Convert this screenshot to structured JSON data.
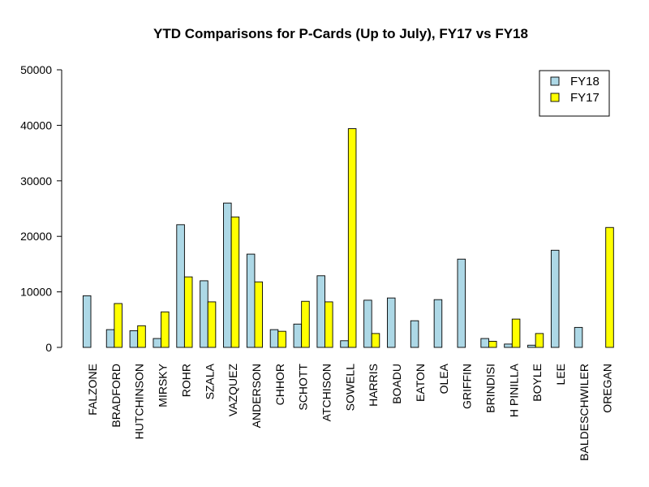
{
  "chart_data": {
    "type": "bar",
    "title": "YTD Comparisons for P-Cards (Up to July), FY17 vs FY18",
    "xlabel": "",
    "ylabel": "",
    "ylim": [
      0,
      50000
    ],
    "yticks": [
      0,
      10000,
      20000,
      30000,
      40000,
      50000
    ],
    "grid": false,
    "legend_position": "top-right",
    "categories": [
      "FALZONE",
      "BRADFORD",
      "HUTCHINSON",
      "MIRSKY",
      "ROHR",
      "SZALA",
      "VAZQUEZ",
      "ANDERSON",
      "CHHOR",
      "SCHOTT",
      "ATCHISON",
      "SOWELL",
      "HARRIS",
      "BOADU",
      "EATON",
      "OLEA",
      "GRIFFIN",
      "BRINDISI",
      "H PINILLA",
      "BOYLE",
      "LEE",
      "BALDESCHWILER",
      "OREGAN"
    ],
    "series": [
      {
        "name": "FY18",
        "color": "#add8e6",
        "values": [
          9300,
          3200,
          3000,
          1600,
          22100,
          12000,
          26000,
          16800,
          3200,
          4200,
          12900,
          1200,
          8500,
          8900,
          4800,
          8600,
          15900,
          1600,
          600,
          400,
          17500,
          3600,
          0
        ]
      },
      {
        "name": "FY17",
        "color": "#ffff00",
        "values": [
          0,
          7900,
          3900,
          6400,
          12700,
          8200,
          23500,
          11800,
          2900,
          8300,
          8200,
          39400,
          2500,
          0,
          0,
          0,
          0,
          1100,
          5100,
          2500,
          0,
          0,
          21600
        ]
      }
    ]
  }
}
